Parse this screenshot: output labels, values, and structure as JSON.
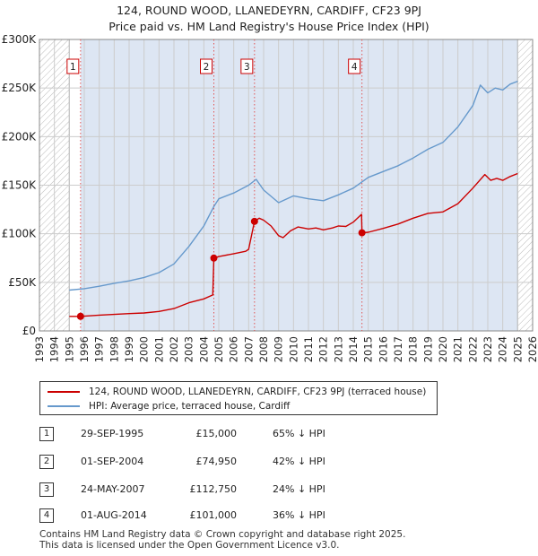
{
  "title_line1": "124, ROUND WOOD, LLANEDEYRN, CARDIFF, CF23 9PJ",
  "title_line2": "Price paid vs. HM Land Registry's House Price Index (HPI)",
  "colors": {
    "price_line": "#cc0000",
    "hpi_line": "#6699cc",
    "shade": "#dde6f3",
    "grid": "#cccccc",
    "marker_line": "#e05555"
  },
  "chart_data": {
    "type": "line",
    "title": "Price paid vs. HM Land Registry's House Price Index (HPI)",
    "xlim": [
      1993,
      2026
    ],
    "ylim": [
      0,
      300000
    ],
    "x_ticks": [
      1993,
      1994,
      1995,
      1996,
      1997,
      1998,
      1999,
      2000,
      2001,
      2002,
      2003,
      2004,
      2005,
      2006,
      2007,
      2008,
      2009,
      2010,
      2011,
      2012,
      2013,
      2014,
      2015,
      2016,
      2017,
      2018,
      2019,
      2020,
      2021,
      2022,
      2023,
      2024,
      2025,
      2026
    ],
    "y_ticks": [
      0,
      50000,
      100000,
      150000,
      200000,
      250000,
      300000
    ],
    "y_tick_labels": [
      "£0",
      "£50K",
      "£100K",
      "£150K",
      "£200K",
      "£250K",
      "£300K"
    ],
    "hatched_regions": [
      [
        1993,
        1995.0
      ],
      [
        2025.0,
        2026
      ]
    ],
    "shaded_region": [
      1995.75,
      2025.0
    ],
    "series": [
      {
        "name": "124, ROUND WOOD, LLANEDEYRN, CARDIFF, CF23 9PJ (terraced house)",
        "color": "#cc0000",
        "points": [
          [
            1995.0,
            15000
          ],
          [
            1995.75,
            15000
          ],
          [
            1997,
            16200
          ],
          [
            1998,
            17000
          ],
          [
            1999,
            17800
          ],
          [
            2000,
            18500
          ],
          [
            2001,
            20000
          ],
          [
            2002,
            23000
          ],
          [
            2003,
            29000
          ],
          [
            2004,
            33000
          ],
          [
            2004.6,
            37000
          ],
          [
            2004.67,
            74950
          ],
          [
            2005,
            76500
          ],
          [
            2006,
            79500
          ],
          [
            2006.8,
            82000
          ],
          [
            2007.0,
            84000
          ],
          [
            2007.39,
            112750
          ],
          [
            2007.7,
            116000
          ],
          [
            2008,
            114000
          ],
          [
            2008.5,
            108000
          ],
          [
            2009.0,
            98000
          ],
          [
            2009.3,
            96000
          ],
          [
            2009.8,
            103000
          ],
          [
            2010.3,
            107000
          ],
          [
            2011.0,
            105000
          ],
          [
            2011.5,
            106000
          ],
          [
            2012,
            104000
          ],
          [
            2012.6,
            106000
          ],
          [
            2013.0,
            108000
          ],
          [
            2013.5,
            107500
          ],
          [
            2014,
            112000
          ],
          [
            2014.55,
            120000
          ],
          [
            2014.58,
            101000
          ],
          [
            2015,
            101500
          ],
          [
            2016,
            105500
          ],
          [
            2017,
            110000
          ],
          [
            2018,
            116000
          ],
          [
            2019,
            121000
          ],
          [
            2020,
            122500
          ],
          [
            2021,
            131000
          ],
          [
            2022,
            147000
          ],
          [
            2022.8,
            161000
          ],
          [
            2023.2,
            155000
          ],
          [
            2023.6,
            157000
          ],
          [
            2024,
            155000
          ],
          [
            2024.5,
            159000
          ],
          [
            2025.0,
            162000
          ]
        ]
      },
      {
        "name": "HPI: Average price, terraced house, Cardiff",
        "color": "#6699cc",
        "points": [
          [
            1995.0,
            42000
          ],
          [
            1996,
            43500
          ],
          [
            1997,
            46000
          ],
          [
            1998,
            49000
          ],
          [
            1999,
            51500
          ],
          [
            2000,
            55000
          ],
          [
            2001,
            60000
          ],
          [
            2002,
            69000
          ],
          [
            2003,
            87000
          ],
          [
            2004,
            108000
          ],
          [
            2004.67,
            128000
          ],
          [
            2005,
            136000
          ],
          [
            2006,
            142000
          ],
          [
            2007,
            150000
          ],
          [
            2007.5,
            156000
          ],
          [
            2008,
            145000
          ],
          [
            2009,
            132000
          ],
          [
            2010,
            139000
          ],
          [
            2011,
            136000
          ],
          [
            2012,
            134000
          ],
          [
            2013,
            140000
          ],
          [
            2014,
            147000
          ],
          [
            2015,
            158000
          ],
          [
            2016,
            164000
          ],
          [
            2017,
            170000
          ],
          [
            2018,
            178000
          ],
          [
            2019,
            187000
          ],
          [
            2020,
            194000
          ],
          [
            2021,
            210000
          ],
          [
            2022,
            232000
          ],
          [
            2022.5,
            253000
          ],
          [
            2023,
            245000
          ],
          [
            2023.5,
            250000
          ],
          [
            2024,
            248000
          ],
          [
            2024.5,
            254000
          ],
          [
            2025.0,
            257000
          ]
        ]
      }
    ],
    "markers": [
      {
        "label": "1",
        "x": 1995.75,
        "y": 15000
      },
      {
        "label": "2",
        "x": 2004.67,
        "y": 74950
      },
      {
        "label": "3",
        "x": 2007.39,
        "y": 112750
      },
      {
        "label": "4",
        "x": 2014.58,
        "y": 101000
      }
    ]
  },
  "legend": {
    "price_label": "124, ROUND WOOD, LLANEDEYRN, CARDIFF, CF23 9PJ (terraced house)",
    "hpi_label": "HPI: Average price, terraced house, Cardiff"
  },
  "sales": [
    {
      "num": "1",
      "date": "29-SEP-1995",
      "price": "£15,000",
      "hpi": "65% ↓ HPI"
    },
    {
      "num": "2",
      "date": "01-SEP-2004",
      "price": "£74,950",
      "hpi": "42% ↓ HPI"
    },
    {
      "num": "3",
      "date": "24-MAY-2007",
      "price": "£112,750",
      "hpi": "24% ↓ HPI"
    },
    {
      "num": "4",
      "date": "01-AUG-2014",
      "price": "£101,000",
      "hpi": "36% ↓ HPI"
    }
  ],
  "footer": {
    "line1": "Contains HM Land Registry data © Crown copyright and database right 2025.",
    "line2": "This data is licensed under the Open Government Licence v3.0."
  }
}
